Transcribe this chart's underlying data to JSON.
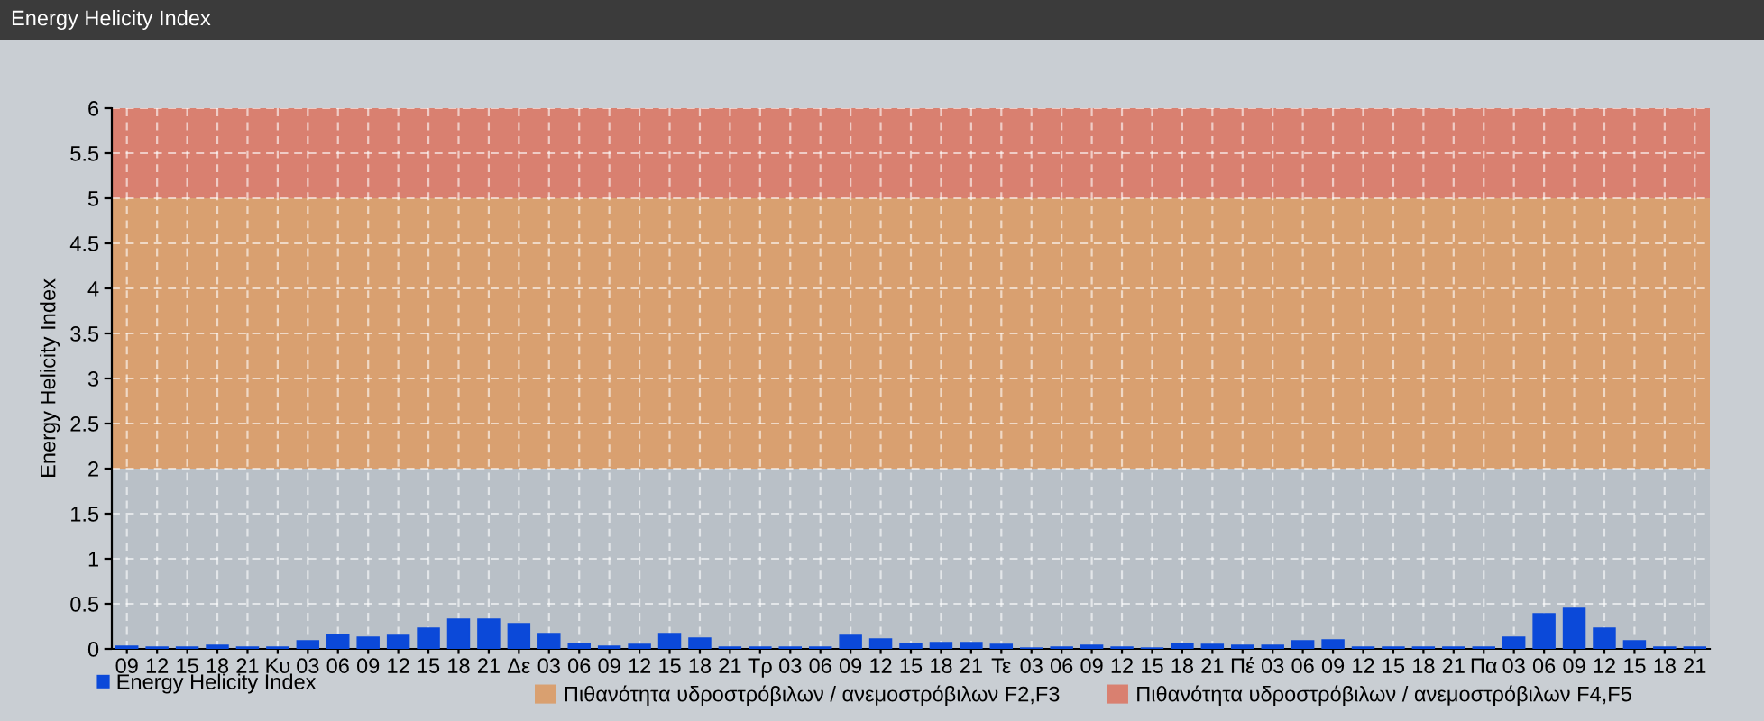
{
  "chart_data": {
    "type": "bar",
    "title": "Energy Helicity Index",
    "ylabel": "Energy Helicity Index",
    "categories": [
      "09",
      "12",
      "15",
      "18",
      "21",
      "Κυ",
      "03",
      "06",
      "09",
      "12",
      "15",
      "18",
      "21",
      "Δε",
      "03",
      "06",
      "09",
      "12",
      "15",
      "18",
      "21",
      "Τρ",
      "03",
      "06",
      "09",
      "12",
      "15",
      "18",
      "21",
      "Τε",
      "03",
      "06",
      "09",
      "12",
      "15",
      "18",
      "21",
      "Πέ",
      "03",
      "06",
      "09",
      "12",
      "15",
      "18",
      "21",
      "Πα",
      "03",
      "06",
      "09",
      "12",
      "15",
      "18",
      "21"
    ],
    "series": [
      {
        "name": "Energy Helicity Index",
        "color": "#0b49d9",
        "values": [
          0.03,
          0.02,
          0.02,
          0.04,
          0.02,
          0.02,
          0.09,
          0.16,
          0.13,
          0.15,
          0.23,
          0.33,
          0.33,
          0.28,
          0.17,
          0.06,
          0.03,
          0.05,
          0.17,
          0.12,
          0.02,
          0.02,
          0.02,
          0.02,
          0.15,
          0.11,
          0.06,
          0.07,
          0.07,
          0.05,
          0.01,
          0.02,
          0.04,
          0.02,
          0.01,
          0.06,
          0.05,
          0.04,
          0.04,
          0.09,
          0.1,
          0.02,
          0.02,
          0.02,
          0.02,
          0.02,
          0.13,
          0.39,
          0.45,
          0.23,
          0.09,
          0.02,
          0.02
        ]
      }
    ],
    "ylim": [
      0,
      6
    ],
    "yticks": [
      0,
      0.5,
      1,
      1.5,
      2,
      2.5,
      3,
      3.5,
      4,
      4.5,
      5,
      5.5,
      6
    ],
    "bands": [
      {
        "axis": "y",
        "from": 2,
        "to": 5,
        "label": "Πιθανότητα υδροστρόβιλων / ανεμοστρόβιλων F2,F3",
        "color": "#d9a070"
      },
      {
        "axis": "y",
        "from": 5,
        "to": 6,
        "label": "Πιθανότητα υδροστρόβιλων / ανεμοστρόβιλων F4,F5",
        "color": "#d98070"
      }
    ],
    "grid": true,
    "legend": "bottom left"
  }
}
